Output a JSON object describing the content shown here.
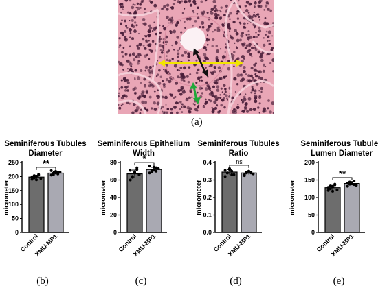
{
  "figure": {
    "panel_a_label": "(a)",
    "image_colors": {
      "tissue": "#e9a6b6",
      "nuclei": "#4a1f3a",
      "lumen": "#fbf1f4",
      "diameter_arrow": "#f2e600",
      "epithelium_arrow": "#111111",
      "lumen_arrow": "#1fa83a"
    }
  },
  "colors": {
    "control_bar": "#6d6d6d",
    "xmu_bar": "#a9a9b2",
    "axis": "#000000"
  },
  "chart_data": [
    {
      "type": "bar",
      "panel": "(b)",
      "title_lines": [
        "Seminiferous Tubules",
        "Diameter"
      ],
      "ylabel": "micrometer",
      "categories": [
        "Control",
        "XMU-MP1"
      ],
      "values": [
        198,
        212
      ],
      "ylim": [
        0,
        250
      ],
      "yticks": [
        0,
        50,
        100,
        150,
        200,
        250
      ],
      "points": [
        [
          190,
          195,
          201,
          205,
          193,
          199,
          203,
          188,
          207
        ],
        [
          205,
          212,
          218,
          209,
          215,
          221,
          207,
          213,
          216
        ]
      ],
      "significance": "**"
    },
    {
      "type": "bar",
      "panel": "(c)",
      "title_lines": [
        "Seminiferous Epithelium",
        "Width"
      ],
      "ylabel": "micrometer",
      "categories": [
        "Control",
        "XMU-MP1"
      ],
      "values": [
        67,
        72
      ],
      "ylim": [
        0,
        80
      ],
      "yticks": [
        0,
        20,
        40,
        60,
        80
      ],
      "points": [
        [
          60,
          64,
          69,
          72,
          66,
          71,
          63,
          68,
          74
        ],
        [
          68,
          71,
          75,
          70,
          73,
          76,
          69,
          72,
          74
        ]
      ],
      "significance": "*"
    },
    {
      "type": "bar",
      "panel": "(d)",
      "title_lines": [
        "Seminiferous Tubules",
        "Ratio"
      ],
      "ylabel": "micrometer",
      "categories": [
        "Control",
        "XMU-MP1"
      ],
      "values": [
        0.345,
        0.34
      ],
      "ylim": [
        0,
        0.4
      ],
      "yticks": [
        0.0,
        0.1,
        0.2,
        0.3,
        0.4
      ],
      "ytick_labels": [
        "0.0",
        "0.1",
        "0.2",
        "0.3",
        "0.4"
      ],
      "points": [
        [
          0.32,
          0.34,
          0.36,
          0.35,
          0.33,
          0.355,
          0.34,
          0.365,
          0.33
        ],
        [
          0.325,
          0.34,
          0.35,
          0.345,
          0.335,
          0.33,
          0.345,
          0.35,
          0.34
        ]
      ],
      "significance": "ns"
    },
    {
      "type": "bar",
      "panel": "(e)",
      "title_lines": [
        "Seminiferous Tubules",
        "Lumen Diameter"
      ],
      "ylabel": "micrometer",
      "categories": [
        "Control",
        "XMU-MP1"
      ],
      "values": [
        128,
        140
      ],
      "ylim": [
        0,
        200
      ],
      "yticks": [
        0,
        50,
        100,
        150,
        200
      ],
      "points": [
        [
          120,
          125,
          131,
          136,
          122,
          129,
          133,
          118,
          138
        ],
        [
          132,
          138,
          143,
          147,
          135,
          141,
          144,
          139,
          137
        ]
      ],
      "significance": "**"
    }
  ]
}
